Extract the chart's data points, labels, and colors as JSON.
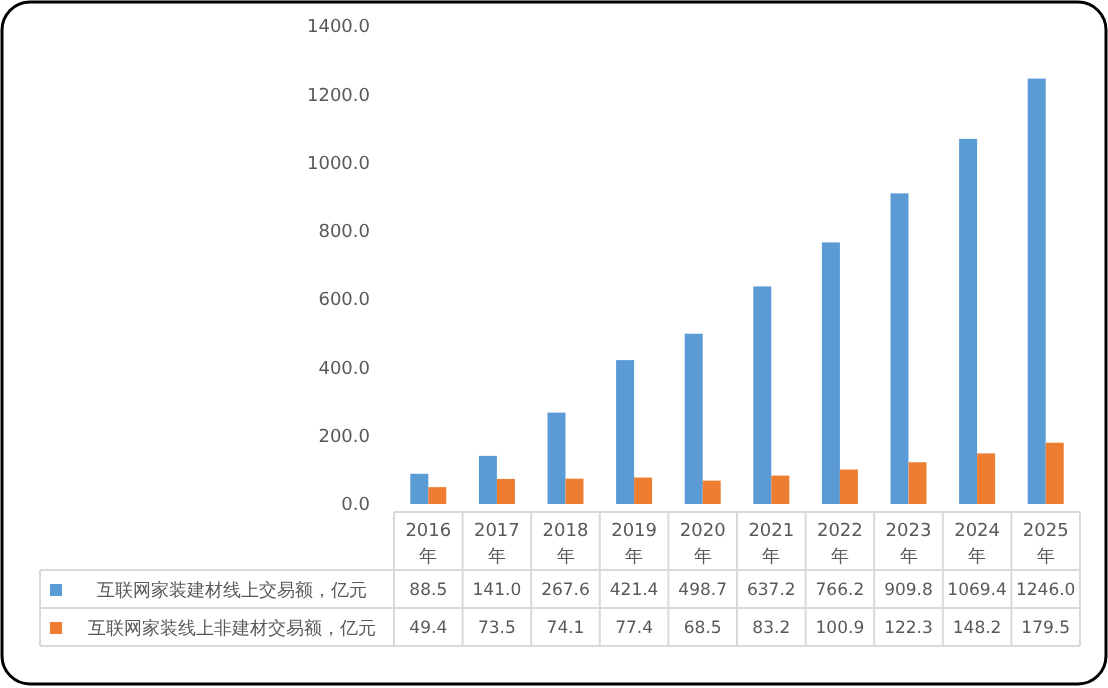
{
  "chart_data": {
    "type": "bar",
    "categories": [
      "2016年",
      "2017年",
      "2018年",
      "2019年",
      "2020年",
      "2021年",
      "2022年",
      "2023年",
      "2024年",
      "2025年"
    ],
    "series": [
      {
        "name": "互联网家装建材线上交易额，亿元",
        "color": "#5b9bd5",
        "values": [
          88.5,
          141.0,
          267.6,
          421.4,
          498.7,
          637.2,
          766.2,
          909.8,
          1069.4,
          1246.0
        ],
        "value_labels": [
          "88.5",
          "141.0",
          "267.6",
          "421.4",
          "498.7",
          "637.2",
          "766.2",
          "909.8",
          "1069.4",
          "1246.0"
        ]
      },
      {
        "name": "互联网家装线上非建材交易额，亿元",
        "color": "#ed7d31",
        "values": [
          49.4,
          73.5,
          74.1,
          77.4,
          68.5,
          83.2,
          100.9,
          122.3,
          148.2,
          179.5
        ],
        "value_labels": [
          "49.4",
          "73.5",
          "74.1",
          "77.4",
          "68.5",
          "83.2",
          "100.9",
          "122.3",
          "148.2",
          "179.5"
        ]
      }
    ],
    "ylim": [
      0,
      1400
    ],
    "yticks": [
      {
        "value": 0,
        "label": "0.0"
      },
      {
        "value": 200,
        "label": "200.0"
      },
      {
        "value": 400,
        "label": "400.0"
      },
      {
        "value": 600,
        "label": "600.0"
      },
      {
        "value": 800,
        "label": "800.0"
      },
      {
        "value": 1000,
        "label": "1000.0"
      },
      {
        "value": 1200,
        "label": "1200.0"
      },
      {
        "value": 1400,
        "label": "1400.0"
      }
    ],
    "legend": "bottom"
  }
}
